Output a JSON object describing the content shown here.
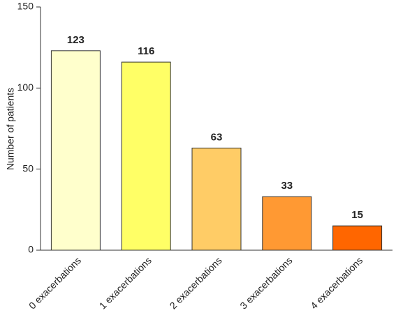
{
  "chart_data": {
    "type": "bar",
    "y_label": "Number of patients",
    "categories": [
      "0 exacerbations",
      "1 exacerbations",
      "2 exacerbations",
      "3 exacerbations",
      "4 exacerbations"
    ],
    "values": [
      123,
      116,
      63,
      33,
      15
    ],
    "colors": [
      "#ffffcc",
      "#ffff66",
      "#ffcc66",
      "#ff9933",
      "#ff6600"
    ],
    "ylim": [
      0,
      150
    ],
    "yticks": [
      0,
      50,
      100,
      150
    ]
  }
}
